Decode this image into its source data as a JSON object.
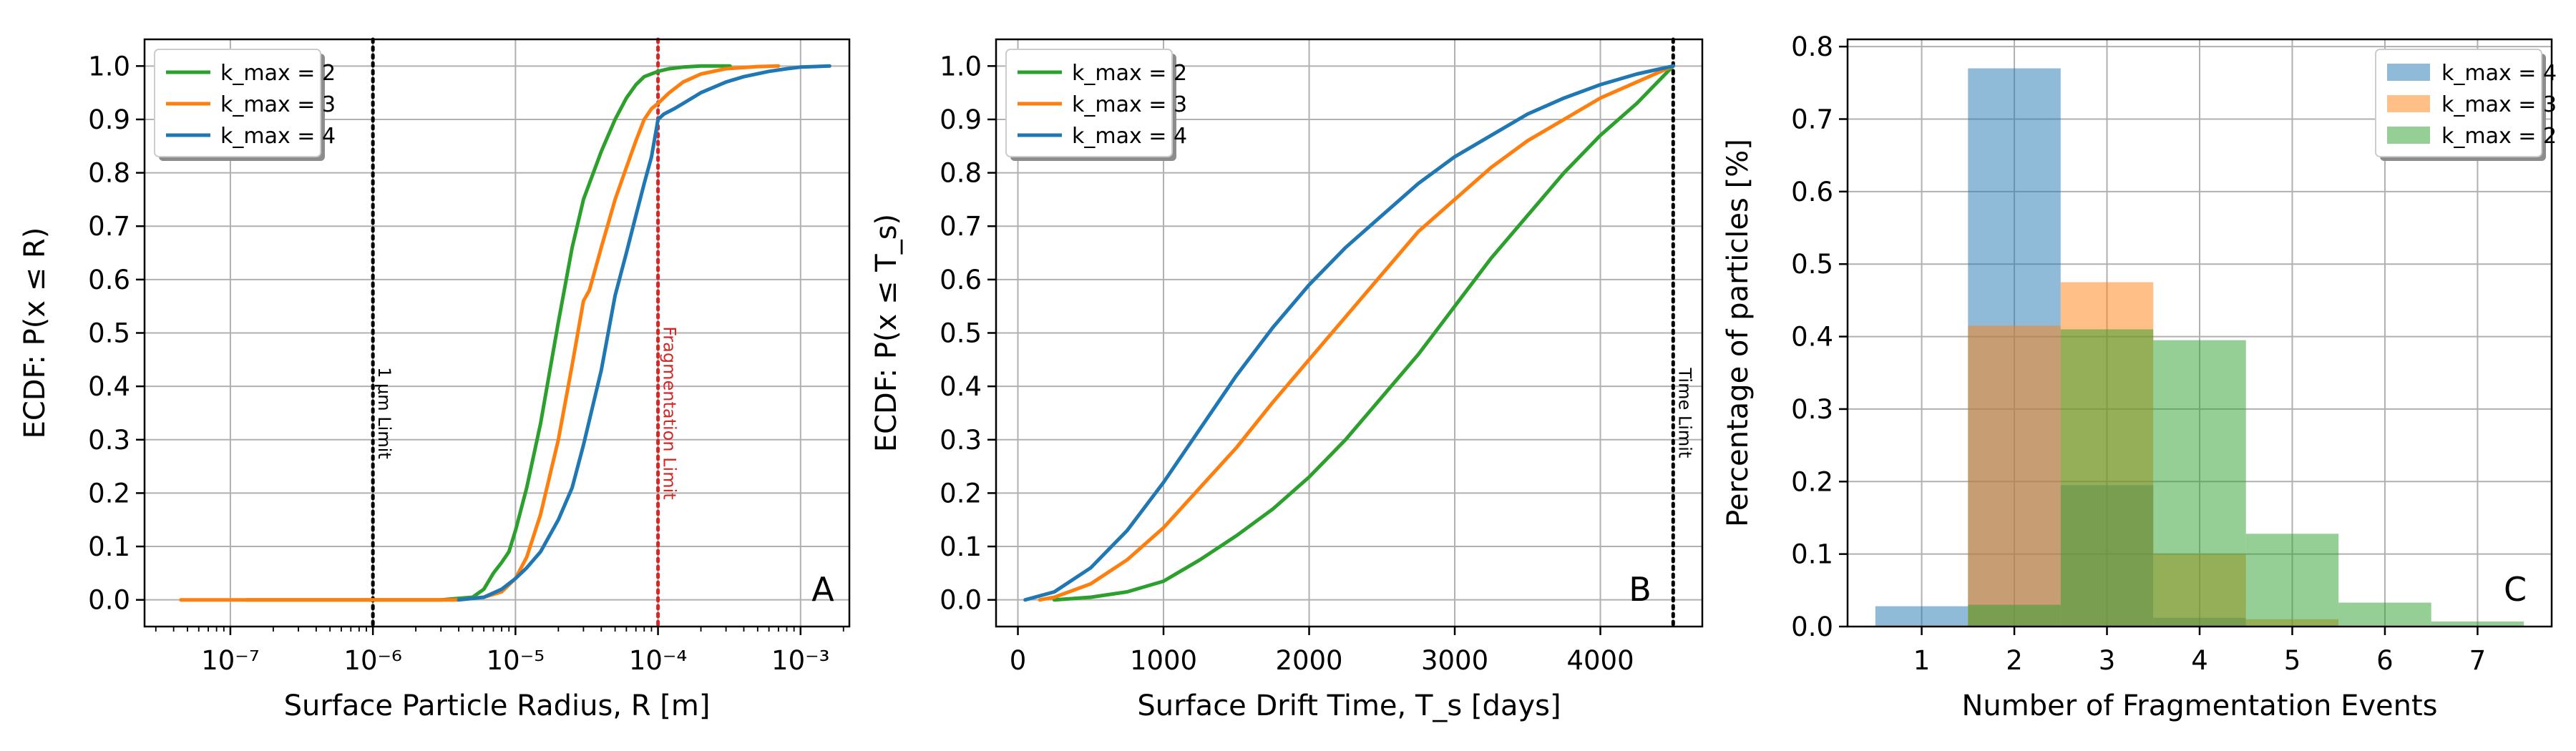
{
  "chart_data": [
    {
      "panel": "A",
      "type": "line",
      "xlabel": "Surface Particle Radius, R [m]",
      "ylabel": "ECDF: P(x ≤ R)",
      "xscale": "log",
      "xlim": [
        2.5e-08,
        0.0022
      ],
      "ylim": [
        -0.05,
        1.05
      ],
      "xticks": [
        1e-07,
        1e-06,
        1e-05,
        0.0001,
        0.001
      ],
      "xtick_labels": [
        "10⁻⁷",
        "10⁻⁶",
        "10⁻⁵",
        "10⁻⁴",
        "10⁻³"
      ],
      "yticks": [
        0,
        0.1,
        0.2,
        0.3,
        0.4,
        0.5,
        0.6,
        0.7,
        0.8,
        0.9,
        1.0
      ],
      "ytick_labels": [
        "0.0",
        "0.1",
        "0.2",
        "0.3",
        "0.4",
        "0.5",
        "0.6",
        "0.7",
        "0.8",
        "0.9",
        "1.0"
      ],
      "grid": true,
      "legend_position": "top-left",
      "series": [
        {
          "name": "k_max = 2",
          "color": "#2ca02c",
          "x": [
            1.3e-07,
            1e-06,
            3e-06,
            5e-06,
            6e-06,
            7e-06,
            8e-06,
            9e-06,
            1e-05,
            1.2e-05,
            1.5e-05,
            2e-05,
            2.5e-05,
            3e-05,
            4e-05,
            5e-05,
            6e-05,
            7e-05,
            8e-05,
            0.0001,
            0.00012,
            0.00015,
            0.0002,
            0.00032
          ],
          "y": [
            0.0,
            0.0,
            0.0,
            0.005,
            0.02,
            0.05,
            0.07,
            0.09,
            0.13,
            0.21,
            0.33,
            0.52,
            0.66,
            0.75,
            0.84,
            0.9,
            0.94,
            0.965,
            0.98,
            0.99,
            0.995,
            0.998,
            1.0,
            1.0
          ]
        },
        {
          "name": "k_max = 3",
          "color": "#ff7f0e",
          "x": [
            4.5e-08,
            1.3e-07,
            1e-06,
            4e-06,
            6e-06,
            8e-06,
            1e-05,
            1.2e-05,
            1.5e-05,
            2e-05,
            2.5e-05,
            3e-05,
            3.3e-05,
            4e-05,
            5e-05,
            6e-05,
            7e-05,
            8e-05,
            9e-05,
            0.0001,
            0.00012,
            0.00015,
            0.0002,
            0.0003,
            0.0005,
            0.0007
          ],
          "y": [
            0.0,
            0.0,
            0.0,
            0.0,
            0.005,
            0.015,
            0.04,
            0.08,
            0.16,
            0.3,
            0.44,
            0.56,
            0.58,
            0.66,
            0.75,
            0.81,
            0.86,
            0.9,
            0.92,
            0.93,
            0.95,
            0.97,
            0.985,
            0.995,
            0.999,
            1.0
          ]
        },
        {
          "name": "k_max = 4",
          "color": "#1f77b4",
          "x": [
            4e-06,
            6e-06,
            8e-06,
            1e-05,
            1.2e-05,
            1.5e-05,
            2e-05,
            2.5e-05,
            3e-05,
            4e-05,
            5e-05,
            6e-05,
            7e-05,
            8e-05,
            9e-05,
            0.0001,
            0.00011,
            0.00013,
            0.00015,
            0.0002,
            0.0003,
            0.0004,
            0.0006,
            0.0008,
            0.001,
            0.0016
          ],
          "y": [
            0.0,
            0.005,
            0.02,
            0.04,
            0.06,
            0.09,
            0.15,
            0.21,
            0.29,
            0.43,
            0.57,
            0.65,
            0.72,
            0.78,
            0.83,
            0.9,
            0.91,
            0.92,
            0.93,
            0.95,
            0.97,
            0.98,
            0.99,
            0.995,
            0.998,
            1.0
          ]
        }
      ],
      "reference_lines": [
        {
          "x": 1e-06,
          "label": "1 μm Limit",
          "color": "#000000"
        },
        {
          "x": 0.0001,
          "label": "Fragmentation Limit",
          "color": "#d62728"
        }
      ]
    },
    {
      "panel": "B",
      "type": "line",
      "xlabel": "Surface Drift Time, T_s [days]",
      "ylabel": "ECDF: P(x ≤ T_s)",
      "xlim": [
        -150,
        4700
      ],
      "ylim": [
        -0.05,
        1.05
      ],
      "xticks": [
        0,
        1000,
        2000,
        3000,
        4000
      ],
      "xtick_labels": [
        "0",
        "1000",
        "2000",
        "3000",
        "4000"
      ],
      "yticks": [
        0,
        0.1,
        0.2,
        0.3,
        0.4,
        0.5,
        0.6,
        0.7,
        0.8,
        0.9,
        1.0
      ],
      "ytick_labels": [
        "0.0",
        "0.1",
        "0.2",
        "0.3",
        "0.4",
        "0.5",
        "0.6",
        "0.7",
        "0.8",
        "0.9",
        "1.0"
      ],
      "grid": true,
      "legend_position": "top-left",
      "series": [
        {
          "name": "k_max = 2",
          "color": "#2ca02c",
          "x": [
            250,
            500,
            750,
            1000,
            1250,
            1500,
            1750,
            2000,
            2250,
            2500,
            2750,
            3000,
            3250,
            3500,
            3750,
            4000,
            4250,
            4500
          ],
          "y": [
            0.0,
            0.005,
            0.015,
            0.035,
            0.075,
            0.12,
            0.17,
            0.23,
            0.3,
            0.38,
            0.46,
            0.55,
            0.64,
            0.72,
            0.8,
            0.87,
            0.93,
            1.0
          ]
        },
        {
          "name": "k_max = 3",
          "color": "#ff7f0e",
          "x": [
            150,
            250,
            500,
            750,
            1000,
            1250,
            1500,
            1750,
            2000,
            2250,
            2500,
            2750,
            3000,
            3250,
            3500,
            3750,
            4000,
            4250,
            4500
          ],
          "y": [
            0.0,
            0.005,
            0.03,
            0.075,
            0.135,
            0.21,
            0.285,
            0.37,
            0.45,
            0.53,
            0.61,
            0.69,
            0.75,
            0.81,
            0.86,
            0.9,
            0.94,
            0.97,
            1.0
          ]
        },
        {
          "name": "k_max = 4",
          "color": "#1f77b4",
          "x": [
            50,
            250,
            500,
            750,
            1000,
            1250,
            1500,
            1750,
            2000,
            2250,
            2500,
            2750,
            3000,
            3250,
            3500,
            3750,
            4000,
            4250,
            4500
          ],
          "y": [
            0.0,
            0.015,
            0.06,
            0.13,
            0.22,
            0.32,
            0.42,
            0.51,
            0.59,
            0.66,
            0.72,
            0.78,
            0.83,
            0.87,
            0.91,
            0.94,
            0.965,
            0.985,
            1.0
          ]
        }
      ],
      "reference_lines": [
        {
          "x": 4500,
          "label": "Time Limit",
          "color": "#000000"
        }
      ]
    },
    {
      "panel": "C",
      "type": "bar",
      "xlabel": "Number of Fragmentation Events",
      "ylabel": "Percentage of particles [%]",
      "xlim": [
        0.2,
        7.8
      ],
      "ylim": [
        0,
        0.81
      ],
      "xticks": [
        1,
        2,
        3,
        4,
        5,
        6,
        7
      ],
      "xtick_labels": [
        "1",
        "2",
        "3",
        "4",
        "5",
        "6",
        "7"
      ],
      "yticks": [
        0,
        0.1,
        0.2,
        0.3,
        0.4,
        0.5,
        0.6,
        0.7,
        0.8
      ],
      "ytick_labels": [
        "0.0",
        "0.1",
        "0.2",
        "0.3",
        "0.4",
        "0.5",
        "0.6",
        "0.7",
        "0.8"
      ],
      "grid": true,
      "legend_position": "top-right",
      "categories": [
        1,
        2,
        3,
        4,
        5,
        6,
        7
      ],
      "series": [
        {
          "name": "k_max = 4",
          "color": "#1f77b4",
          "alpha": 0.5,
          "values": [
            0.028,
            0.77,
            0.195,
            0.012,
            0.0,
            0.0,
            0.0
          ]
        },
        {
          "name": "k_max = 3",
          "color": "#ff7f0e",
          "alpha": 0.5,
          "values": [
            0.0,
            0.415,
            0.475,
            0.1,
            0.01,
            0.0,
            0.0
          ]
        },
        {
          "name": "k_max = 2",
          "color": "#2ca02c",
          "alpha": 0.5,
          "values": [
            0.0,
            0.03,
            0.41,
            0.395,
            0.128,
            0.033,
            0.007
          ]
        }
      ]
    }
  ]
}
